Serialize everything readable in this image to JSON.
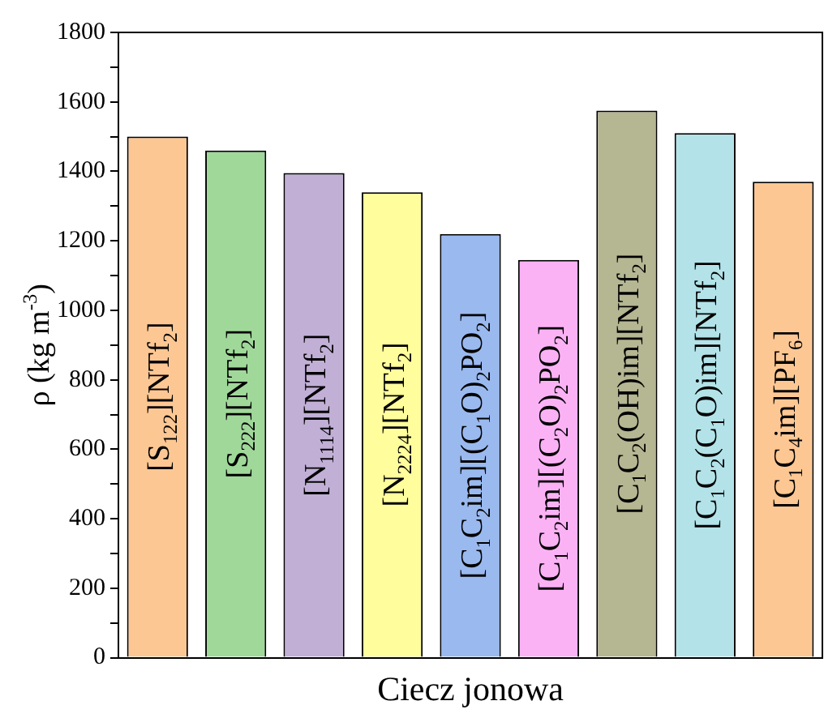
{
  "chart_data": {
    "type": "bar",
    "xlabel": "Ciecz jonowa",
    "ylabel": "ρ (kg m$^{-3}$)",
    "categories": [
      "[S$_{122}$][NTf$_{2}$]",
      "[S$_{222}$][NTf$_{2}$]",
      "[N$_{1114}$][NTf$_{2}$]",
      "[N$_{2224}$][NTf$_{2}$]",
      "[C$_{1}$C$_{2}$im][(C$_{1}$O)$_{2}$PO$_{2}$]",
      "[C$_{1}$C$_{2}$im][(C$_{2}$O)$_{2}$PO$_{2}$]",
      "[C$_{1}$C$_{2}$(OH)im][NTf$_{2}$]",
      "[C$_{1}$C$_{2}$(C$_{1}$O)im][NTf$_{2}$]",
      "[C$_{1}$C$_{4}$im][PF$_{6}$]"
    ],
    "values": [
      1500,
      1460,
      1395,
      1340,
      1220,
      1145,
      1575,
      1510,
      1370
    ],
    "colors": [
      "#fdc793",
      "#a0d89a",
      "#c1afd6",
      "#fffd9c",
      "#9ab9ef",
      "#fbb2f5",
      "#b5b692",
      "#b3e3e9",
      "#fdc793"
    ],
    "ylim": [
      0,
      1800
    ],
    "yticks": [
      0,
      {
        "value": 100,
        "label": null
      },
      200,
      {
        "value": 300,
        "label": null
      },
      400,
      {
        "value": 500,
        "label": null
      },
      600,
      {
        "value": 700,
        "label": null
      },
      800,
      {
        "value": 900,
        "label": null
      },
      1000,
      {
        "value": 1100,
        "label": null
      },
      1200,
      {
        "value": 1300,
        "label": null
      },
      1400,
      {
        "value": 1500,
        "label": null
      },
      1600,
      {
        "value": 1700,
        "label": null
      },
      1800
    ],
    "tick_labels": "y",
    "grid": false,
    "legend": false
  }
}
